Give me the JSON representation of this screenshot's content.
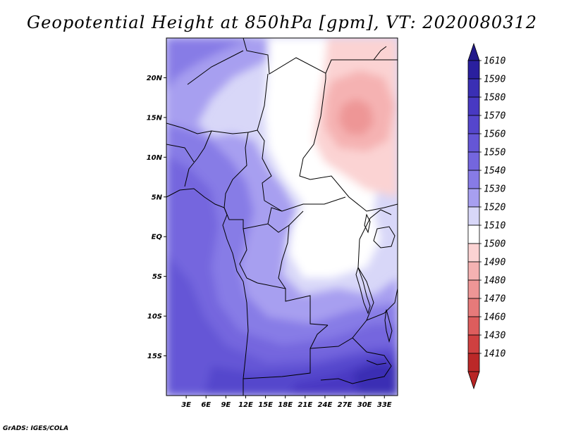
{
  "title": "Geopotential Height at 850hPa [gpm], VT: 2020080312",
  "credit": "GrADS: IGES/COLA",
  "map": {
    "lon_range": [
      0,
      35
    ],
    "lat_range": [
      -20,
      25
    ],
    "lat_ticks": [
      {
        "value": 20,
        "label": "20N"
      },
      {
        "value": 15,
        "label": "15N"
      },
      {
        "value": 10,
        "label": "10N"
      },
      {
        "value": 5,
        "label": "5N"
      },
      {
        "value": 0,
        "label": "EQ"
      },
      {
        "value": -5,
        "label": "5S"
      },
      {
        "value": -10,
        "label": "10S"
      },
      {
        "value": -15,
        "label": "15S"
      }
    ],
    "lon_ticks": [
      {
        "value": 3,
        "label": "3E"
      },
      {
        "value": 6,
        "label": "6E"
      },
      {
        "value": 9,
        "label": "9E"
      },
      {
        "value": 12,
        "label": "12E"
      },
      {
        "value": 15,
        "label": "15E"
      },
      {
        "value": 18,
        "label": "18E"
      },
      {
        "value": 21,
        "label": "21E"
      },
      {
        "value": 24,
        "label": "24E"
      },
      {
        "value": 27,
        "label": "27E"
      },
      {
        "value": 30,
        "label": "30E"
      },
      {
        "value": 33,
        "label": "33E"
      }
    ]
  },
  "colorbar": {
    "levels": [
      {
        "label": "1610",
        "color": "#2a1f9e"
      },
      {
        "label": "1590",
        "color": "#3a2fb4"
      },
      {
        "label": "1580",
        "color": "#4839c2"
      },
      {
        "label": "1570",
        "color": "#5546cc"
      },
      {
        "label": "1560",
        "color": "#6556d6"
      },
      {
        "label": "1550",
        "color": "#7466de"
      },
      {
        "label": "1540",
        "color": "#877be6"
      },
      {
        "label": "1530",
        "color": "#a79ff0"
      },
      {
        "label": "1520",
        "color": "#d8d7f8"
      },
      {
        "label": "1510",
        "color": "#ffffff"
      },
      {
        "label": "1500",
        "color": "#fbd3d3"
      },
      {
        "label": "1490",
        "color": "#f5b2b2"
      },
      {
        "label": "1480",
        "color": "#ee9696"
      },
      {
        "label": "1470",
        "color": "#e67a7a"
      },
      {
        "label": "1460",
        "color": "#dd5d5d"
      },
      {
        "label": "1430",
        "color": "#cf4040"
      },
      {
        "label": "1410",
        "color": "#bb2828"
      }
    ],
    "top_arrow_color": "#231a8a",
    "bottom_arrow_color": "#b82525"
  }
}
